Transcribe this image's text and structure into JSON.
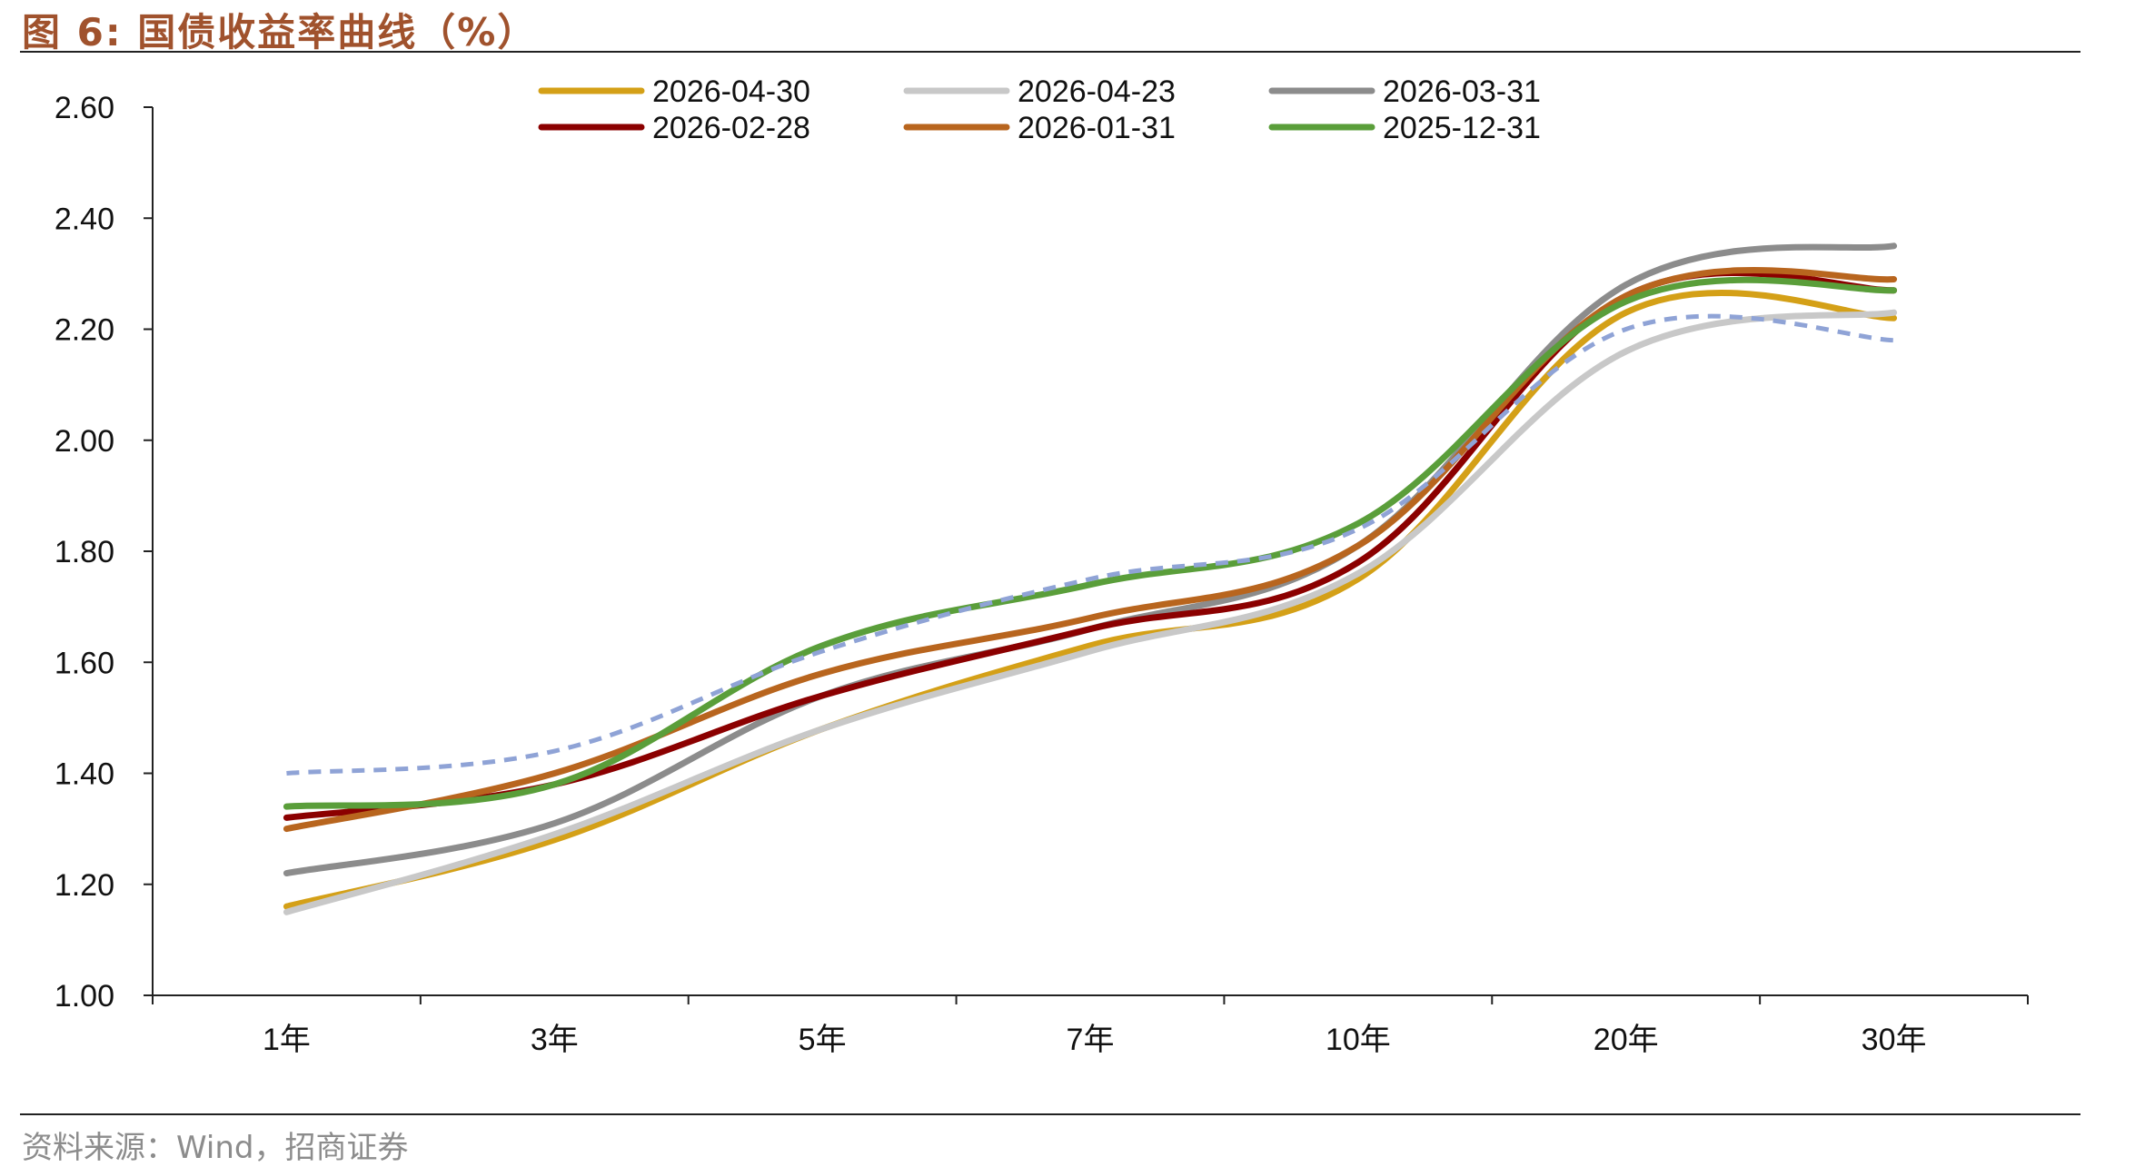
{
  "figure": {
    "title": "图 6: 国债收益率曲线（%）",
    "source": "资料来源：Wind，招商证券"
  },
  "chart_data": {
    "type": "line",
    "title": "图 6: 国债收益率曲线（%）",
    "xlabel": "",
    "ylabel": "",
    "categories": [
      "1年",
      "3年",
      "5年",
      "7年",
      "10年",
      "20年",
      "30年"
    ],
    "ylim": [
      1.0,
      2.6
    ],
    "yticks": [
      "1.00",
      "1.20",
      "1.40",
      "1.60",
      "1.80",
      "2.00",
      "2.20",
      "2.40",
      "2.60"
    ],
    "grid": false,
    "legend_position": "top-center",
    "series": [
      {
        "name": "2026-04-30",
        "color": "#d4a017",
        "style": "solid",
        "values": [
          1.16,
          1.28,
          1.48,
          1.63,
          1.75,
          2.23,
          2.22
        ]
      },
      {
        "name": "2026-04-23",
        "color": "#c8c8c8",
        "style": "solid",
        "values": [
          1.15,
          1.29,
          1.48,
          1.62,
          1.76,
          2.16,
          2.23
        ]
      },
      {
        "name": "2026-03-31",
        "color": "#8c8c8c",
        "style": "solid",
        "values": [
          1.22,
          1.31,
          1.54,
          1.66,
          1.81,
          2.28,
          2.35
        ]
      },
      {
        "name": "2026-02-28",
        "color": "#8b0000",
        "style": "solid",
        "values": [
          1.32,
          1.38,
          1.54,
          1.66,
          1.78,
          2.26,
          2.27
        ]
      },
      {
        "name": "2026-01-31",
        "color": "#b8651e",
        "style": "solid",
        "values": [
          1.3,
          1.4,
          1.58,
          1.68,
          1.81,
          2.26,
          2.29
        ]
      },
      {
        "name": "2025-12-31",
        "color": "#5a9e3a",
        "style": "solid",
        "values": [
          1.34,
          1.38,
          1.63,
          1.74,
          1.85,
          2.25,
          2.27
        ]
      },
      {
        "name": "",
        "color": "#8fa3d6",
        "style": "dashed",
        "values": [
          1.4,
          1.44,
          1.62,
          1.75,
          1.84,
          2.2,
          2.18
        ]
      }
    ]
  }
}
